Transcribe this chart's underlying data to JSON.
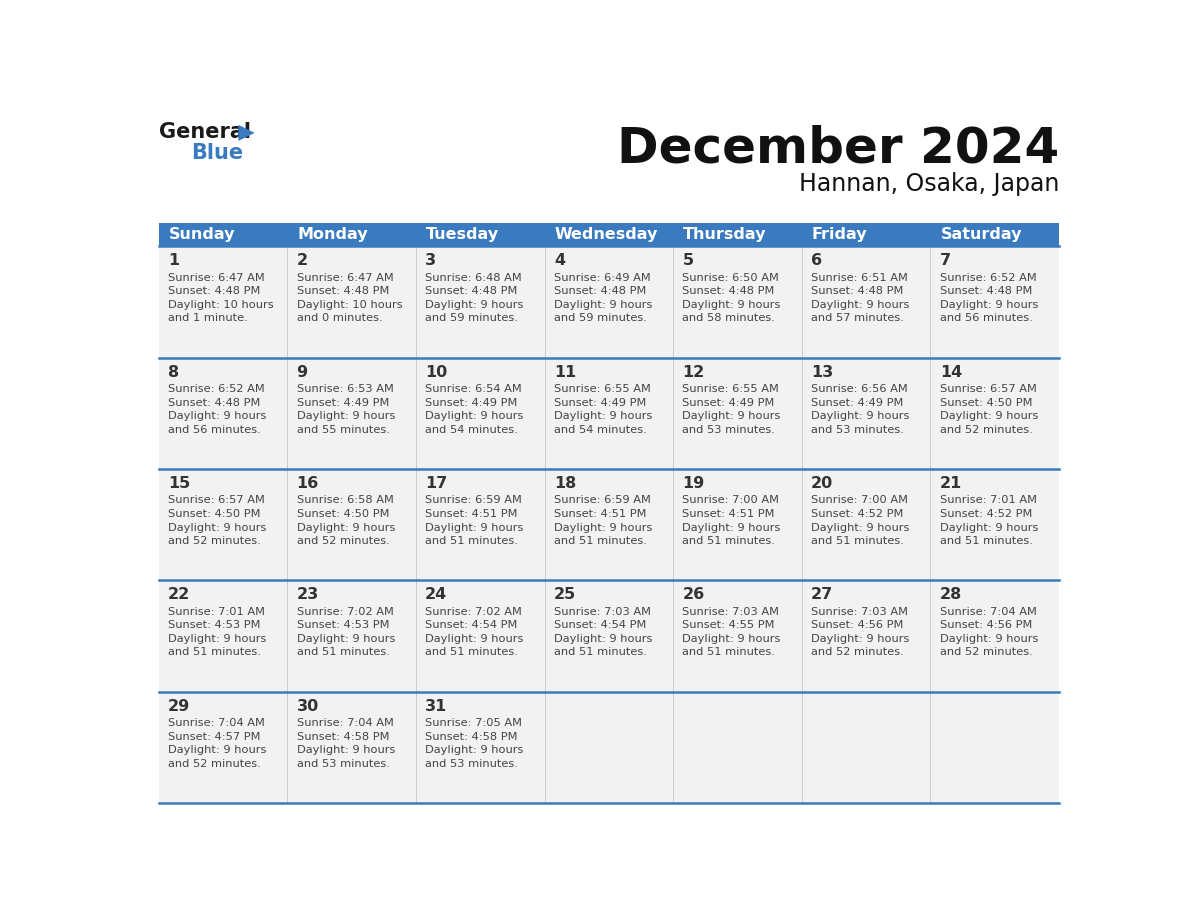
{
  "title": "December 2024",
  "subtitle": "Hannan, Osaka, Japan",
  "header_color": "#3a7abf",
  "header_text_color": "#ffffff",
  "day_names": [
    "Sunday",
    "Monday",
    "Tuesday",
    "Wednesday",
    "Thursday",
    "Friday",
    "Saturday"
  ],
  "bg_color": "#ffffff",
  "cell_bg": "#f2f2f2",
  "row_line_color": "#3a7abf",
  "grid_color": "#cccccc",
  "day_num_color": "#333333",
  "info_color": "#444444",
  "calendar": [
    [
      {
        "day": 1,
        "sunrise": "6:47 AM",
        "sunset": "4:48 PM",
        "daylight": "10 hours\nand 1 minute."
      },
      {
        "day": 2,
        "sunrise": "6:47 AM",
        "sunset": "4:48 PM",
        "daylight": "10 hours\nand 0 minutes."
      },
      {
        "day": 3,
        "sunrise": "6:48 AM",
        "sunset": "4:48 PM",
        "daylight": "9 hours\nand 59 minutes."
      },
      {
        "day": 4,
        "sunrise": "6:49 AM",
        "sunset": "4:48 PM",
        "daylight": "9 hours\nand 59 minutes."
      },
      {
        "day": 5,
        "sunrise": "6:50 AM",
        "sunset": "4:48 PM",
        "daylight": "9 hours\nand 58 minutes."
      },
      {
        "day": 6,
        "sunrise": "6:51 AM",
        "sunset": "4:48 PM",
        "daylight": "9 hours\nand 57 minutes."
      },
      {
        "day": 7,
        "sunrise": "6:52 AM",
        "sunset": "4:48 PM",
        "daylight": "9 hours\nand 56 minutes."
      }
    ],
    [
      {
        "day": 8,
        "sunrise": "6:52 AM",
        "sunset": "4:48 PM",
        "daylight": "9 hours\nand 56 minutes."
      },
      {
        "day": 9,
        "sunrise": "6:53 AM",
        "sunset": "4:49 PM",
        "daylight": "9 hours\nand 55 minutes."
      },
      {
        "day": 10,
        "sunrise": "6:54 AM",
        "sunset": "4:49 PM",
        "daylight": "9 hours\nand 54 minutes."
      },
      {
        "day": 11,
        "sunrise": "6:55 AM",
        "sunset": "4:49 PM",
        "daylight": "9 hours\nand 54 minutes."
      },
      {
        "day": 12,
        "sunrise": "6:55 AM",
        "sunset": "4:49 PM",
        "daylight": "9 hours\nand 53 minutes."
      },
      {
        "day": 13,
        "sunrise": "6:56 AM",
        "sunset": "4:49 PM",
        "daylight": "9 hours\nand 53 minutes."
      },
      {
        "day": 14,
        "sunrise": "6:57 AM",
        "sunset": "4:50 PM",
        "daylight": "9 hours\nand 52 minutes."
      }
    ],
    [
      {
        "day": 15,
        "sunrise": "6:57 AM",
        "sunset": "4:50 PM",
        "daylight": "9 hours\nand 52 minutes."
      },
      {
        "day": 16,
        "sunrise": "6:58 AM",
        "sunset": "4:50 PM",
        "daylight": "9 hours\nand 52 minutes."
      },
      {
        "day": 17,
        "sunrise": "6:59 AM",
        "sunset": "4:51 PM",
        "daylight": "9 hours\nand 51 minutes."
      },
      {
        "day": 18,
        "sunrise": "6:59 AM",
        "sunset": "4:51 PM",
        "daylight": "9 hours\nand 51 minutes."
      },
      {
        "day": 19,
        "sunrise": "7:00 AM",
        "sunset": "4:51 PM",
        "daylight": "9 hours\nand 51 minutes."
      },
      {
        "day": 20,
        "sunrise": "7:00 AM",
        "sunset": "4:52 PM",
        "daylight": "9 hours\nand 51 minutes."
      },
      {
        "day": 21,
        "sunrise": "7:01 AM",
        "sunset": "4:52 PM",
        "daylight": "9 hours\nand 51 minutes."
      }
    ],
    [
      {
        "day": 22,
        "sunrise": "7:01 AM",
        "sunset": "4:53 PM",
        "daylight": "9 hours\nand 51 minutes."
      },
      {
        "day": 23,
        "sunrise": "7:02 AM",
        "sunset": "4:53 PM",
        "daylight": "9 hours\nand 51 minutes."
      },
      {
        "day": 24,
        "sunrise": "7:02 AM",
        "sunset": "4:54 PM",
        "daylight": "9 hours\nand 51 minutes."
      },
      {
        "day": 25,
        "sunrise": "7:03 AM",
        "sunset": "4:54 PM",
        "daylight": "9 hours\nand 51 minutes."
      },
      {
        "day": 26,
        "sunrise": "7:03 AM",
        "sunset": "4:55 PM",
        "daylight": "9 hours\nand 51 minutes."
      },
      {
        "day": 27,
        "sunrise": "7:03 AM",
        "sunset": "4:56 PM",
        "daylight": "9 hours\nand 52 minutes."
      },
      {
        "day": 28,
        "sunrise": "7:04 AM",
        "sunset": "4:56 PM",
        "daylight": "9 hours\nand 52 minutes."
      }
    ],
    [
      {
        "day": 29,
        "sunrise": "7:04 AM",
        "sunset": "4:57 PM",
        "daylight": "9 hours\nand 52 minutes."
      },
      {
        "day": 30,
        "sunrise": "7:04 AM",
        "sunset": "4:58 PM",
        "daylight": "9 hours\nand 53 minutes."
      },
      {
        "day": 31,
        "sunrise": "7:05 AM",
        "sunset": "4:58 PM",
        "daylight": "9 hours\nand 53 minutes."
      },
      null,
      null,
      null,
      null
    ]
  ]
}
